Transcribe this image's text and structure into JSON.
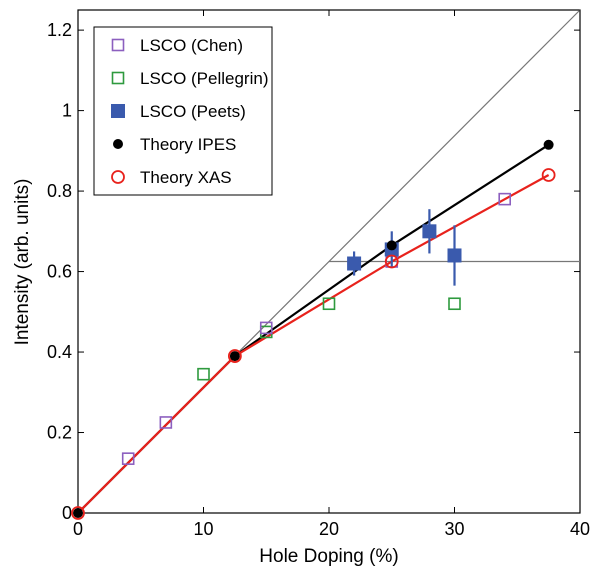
{
  "chart_data": {
    "type": "scatter",
    "xlabel": "Hole Doping (%)",
    "ylabel": "Intensity (arb. units)",
    "xlim": [
      0,
      40
    ],
    "ylim": [
      0,
      1.25
    ],
    "xticks": [
      "0",
      "10",
      "20",
      "30",
      "40"
    ],
    "yticks": [
      "0",
      "0.2",
      "0.4",
      "0.6",
      "0.8",
      "1",
      "1.2"
    ],
    "legend_position": "top-left",
    "reference_lines": [
      {
        "kind": "diagonal",
        "from": [
          0,
          0
        ],
        "to": [
          40,
          1.25
        ],
        "color": "#777777"
      },
      {
        "kind": "horizontal",
        "y": 0.625,
        "x_from": 20,
        "x_to": 40,
        "color": "#777777"
      }
    ],
    "series": [
      {
        "name": "LSCO (Chen)",
        "marker": "open-square",
        "color": "#8c5fbf",
        "x": [
          4,
          7,
          15,
          25,
          34
        ],
        "y": [
          0.135,
          0.225,
          0.46,
          0.625,
          0.78
        ]
      },
      {
        "name": "LSCO (Pellegrin)",
        "marker": "open-square",
        "color": "#2e9a3e",
        "x": [
          10,
          15,
          20,
          30
        ],
        "y": [
          0.345,
          0.45,
          0.52,
          0.52
        ]
      },
      {
        "name": "LSCO (Peets)",
        "marker": "filled-square",
        "color": "#3a5aad",
        "x": [
          22,
          25,
          28,
          30
        ],
        "y": [
          0.62,
          0.655,
          0.7,
          0.64
        ],
        "err": [
          0.03,
          0.045,
          0.055,
          0.075
        ]
      },
      {
        "name": "Theory IPES",
        "marker": "filled-circle",
        "color": "#000000",
        "line": true,
        "x": [
          0,
          12.5,
          25,
          37.5
        ],
        "y": [
          0,
          0.39,
          0.665,
          0.915
        ]
      },
      {
        "name": "Theory XAS",
        "marker": "open-circle",
        "color": "#e8221c",
        "line": true,
        "x": [
          0,
          12.5,
          25,
          37.5
        ],
        "y": [
          0,
          0.39,
          0.625,
          0.84
        ]
      }
    ]
  }
}
